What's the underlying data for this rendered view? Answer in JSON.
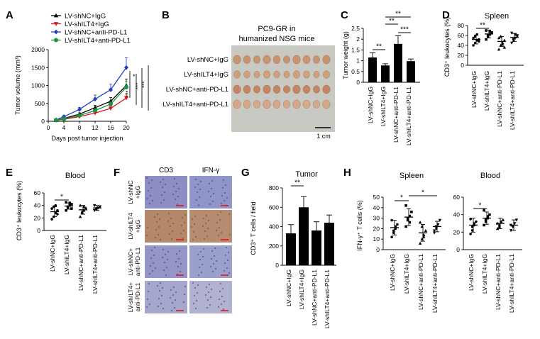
{
  "groups": [
    "LV-shNC+IgG",
    "LV-shILT4+IgG",
    "LV-shNC+anti-PD-L1",
    "LV-shILT4+anti-PD-L1"
  ],
  "colors": {
    "shNC_IgG": "#000000",
    "shILT4_IgG": "#d7191c",
    "shNC_PDL1": "#1f3fbf",
    "shILT4_PDL1": "#1a9641",
    "bar": "#000000"
  },
  "panels": {
    "A": {
      "letter": "A",
      "sig": [
        "*",
        "***",
        "***",
        "***"
      ]
    },
    "B": {
      "letter": "B",
      "title_line1": "PC9-GR in",
      "title_line2": "humanized NSG mice",
      "rows": [
        "LV-shNC+IgG",
        "LV-shILT4+IgG",
        "LV-shNC+anti-PD-L1",
        "LV-shILT4+anti-PD-L1"
      ],
      "scale": "1 cm"
    },
    "C": {
      "letter": "C",
      "sig": [
        "**",
        "**",
        "**",
        "***"
      ]
    },
    "D": {
      "letter": "D",
      "sig": [
        "**"
      ]
    },
    "E": {
      "letter": "E",
      "sig": [
        "*"
      ]
    },
    "F": {
      "letter": "F",
      "col1": "CD3",
      "col2": "IFN-γ",
      "row_labels": [
        [
          "LV-shNC",
          "+IgG"
        ],
        [
          "LV-shILT4",
          "+IgG"
        ],
        [
          "LV-shNC+",
          "anti-PD-L1"
        ],
        [
          "LV-shILT4+",
          "anti-PD-L1"
        ]
      ]
    },
    "G": {
      "letter": "G",
      "sig": [
        "**"
      ]
    },
    "H": {
      "letter": "H",
      "sig_spleen": [
        "*",
        "*"
      ],
      "sig_blood": [
        "*"
      ]
    }
  },
  "chart_data": [
    {
      "id": "A",
      "type": "line",
      "xlabel": "Days post tumor injection",
      "ylabel": "Tumor volume (mm³)",
      "xlim": [
        0,
        20
      ],
      "ylim": [
        0,
        2000
      ],
      "xticks": [
        0,
        4,
        8,
        12,
        16,
        20
      ],
      "yticks": [
        0,
        500,
        1000,
        1500,
        2000
      ],
      "legend": "top-left",
      "x": [
        2,
        4,
        8,
        12,
        16,
        20
      ],
      "series": [
        {
          "name": "LV-shNC+IgG",
          "values": [
            30,
            80,
            200,
            380,
            560,
            1000
          ]
        },
        {
          "name": "LV-shILT4+IgG",
          "values": [
            25,
            55,
            130,
            230,
            360,
            650
          ]
        },
        {
          "name": "LV-shNC+anti-PD-L1",
          "values": [
            40,
            130,
            330,
            620,
            880,
            1500
          ]
        },
        {
          "name": "LV-shILT4+anti-PD-L1",
          "values": [
            30,
            70,
            160,
            300,
            480,
            950
          ]
        }
      ]
    },
    {
      "id": "C",
      "type": "bar",
      "ylabel": "Tumor weight (g)",
      "ylim": [
        0,
        2.5
      ],
      "yticks": [
        0,
        0.5,
        1.0,
        1.5,
        2.0,
        2.5
      ],
      "categories": [
        "LV-shNC+IgG",
        "LV-shILT4+IgG",
        "LV-shNC+anti-PD-L1",
        "LV-shILT4+anti-PD-L1"
      ],
      "values": [
        1.15,
        0.78,
        1.78,
        0.98
      ],
      "errors": [
        0.22,
        0.08,
        0.38,
        0.1
      ]
    },
    {
      "id": "D",
      "type": "scatter",
      "title": "Spleen",
      "ylabel": "CD3⁺ leukocytes (%)",
      "ylim": [
        0,
        80
      ],
      "yticks": [
        0,
        20,
        40,
        60,
        80
      ],
      "categories": [
        "LV-shNC+IgG",
        "LV-shILT4+IgG",
        "LV-shNC+anti-PD-L1",
        "LV-shILT4+anti-PD-L1"
      ],
      "means": [
        52,
        63,
        48,
        56
      ],
      "sd": [
        9,
        8,
        10,
        8
      ],
      "points": [
        [
          40,
          45,
          50,
          52,
          55,
          58,
          62,
          48
        ],
        [
          52,
          58,
          62,
          65,
          70,
          60,
          68,
          66
        ],
        [
          32,
          40,
          45,
          50,
          55,
          58,
          42,
          36
        ],
        [
          45,
          50,
          55,
          60,
          65,
          52,
          62,
          58
        ]
      ]
    },
    {
      "id": "E",
      "type": "scatter",
      "title": "Blood",
      "ylabel": "CD3⁺ leukocytes (%)",
      "ylim": [
        0,
        60
      ],
      "yticks": [
        0,
        20,
        40,
        60
      ],
      "categories": [
        "LV-shNC+IgG",
        "LV-shILT4+IgG",
        "LV-shNC+anti-PD-L1",
        "LV-shILT4+anti-PD-L1"
      ],
      "means": [
        30,
        39,
        33,
        36
      ],
      "sd": [
        8,
        5,
        7,
        4
      ],
      "points": [
        [
          18,
          22,
          28,
          32,
          35,
          38,
          40,
          26
        ],
        [
          32,
          36,
          40,
          42,
          45,
          38,
          44,
          35
        ],
        [
          22,
          28,
          32,
          36,
          40,
          30,
          38
        ],
        [
          32,
          34,
          36,
          38,
          40,
          35
        ]
      ]
    },
    {
      "id": "G",
      "type": "bar",
      "title": "Tumor",
      "ylabel": "CD3⁺ T cells / field",
      "ylim": [
        0,
        800
      ],
      "yticks": [
        0,
        200,
        400,
        600,
        800
      ],
      "categories": [
        "LV-shNC+IgG",
        "LV-shILT4+IgG",
        "LV-shNC+anti-PD-L1",
        "LV-shILT4+anti-PD-L1"
      ],
      "values": [
        330,
        600,
        360,
        440
      ],
      "errors": [
        90,
        110,
        90,
        80
      ]
    },
    {
      "id": "H1",
      "type": "scatter",
      "title": "Spleen",
      "ylabel": "IFN-γ⁺ T cells (%)",
      "ylim": [
        0,
        50
      ],
      "yticks": [
        0,
        10,
        20,
        30,
        40,
        50
      ],
      "categories": [
        "LV-shNC+IgG",
        "LV-shILT4+IgG",
        "LV-shNC+anti-PD-L1",
        "LV-shILT4+anti-PD-L1"
      ],
      "means": [
        21,
        31,
        16,
        22
      ],
      "sd": [
        7,
        8,
        8,
        5
      ],
      "points": [
        [
          12,
          16,
          20,
          24,
          28,
          18,
          22
        ],
        [
          22,
          28,
          32,
          36,
          42,
          30,
          26
        ],
        [
          6,
          10,
          14,
          18,
          26,
          22,
          12
        ],
        [
          16,
          20,
          24,
          28,
          18,
          22
        ]
      ]
    },
    {
      "id": "H2",
      "type": "scatter",
      "title": "Blood",
      "ylim": [
        0,
        60
      ],
      "yticks": [
        0,
        20,
        40,
        60
      ],
      "categories": [
        "LV-shNC+IgG",
        "LV-shILT4+IgG",
        "LV-shNC+anti-PD-L1",
        "LV-shILT4+anti-PD-L1"
      ],
      "means": [
        28,
        36,
        30,
        28
      ],
      "sd": [
        8,
        7,
        6,
        6
      ],
      "points": [
        [
          18,
          22,
          28,
          32,
          35,
          26,
          30
        ],
        [
          28,
          32,
          36,
          40,
          45,
          34,
          38
        ],
        [
          24,
          28,
          32,
          34,
          30,
          26
        ],
        [
          22,
          26,
          30,
          34,
          28
        ]
      ]
    }
  ]
}
